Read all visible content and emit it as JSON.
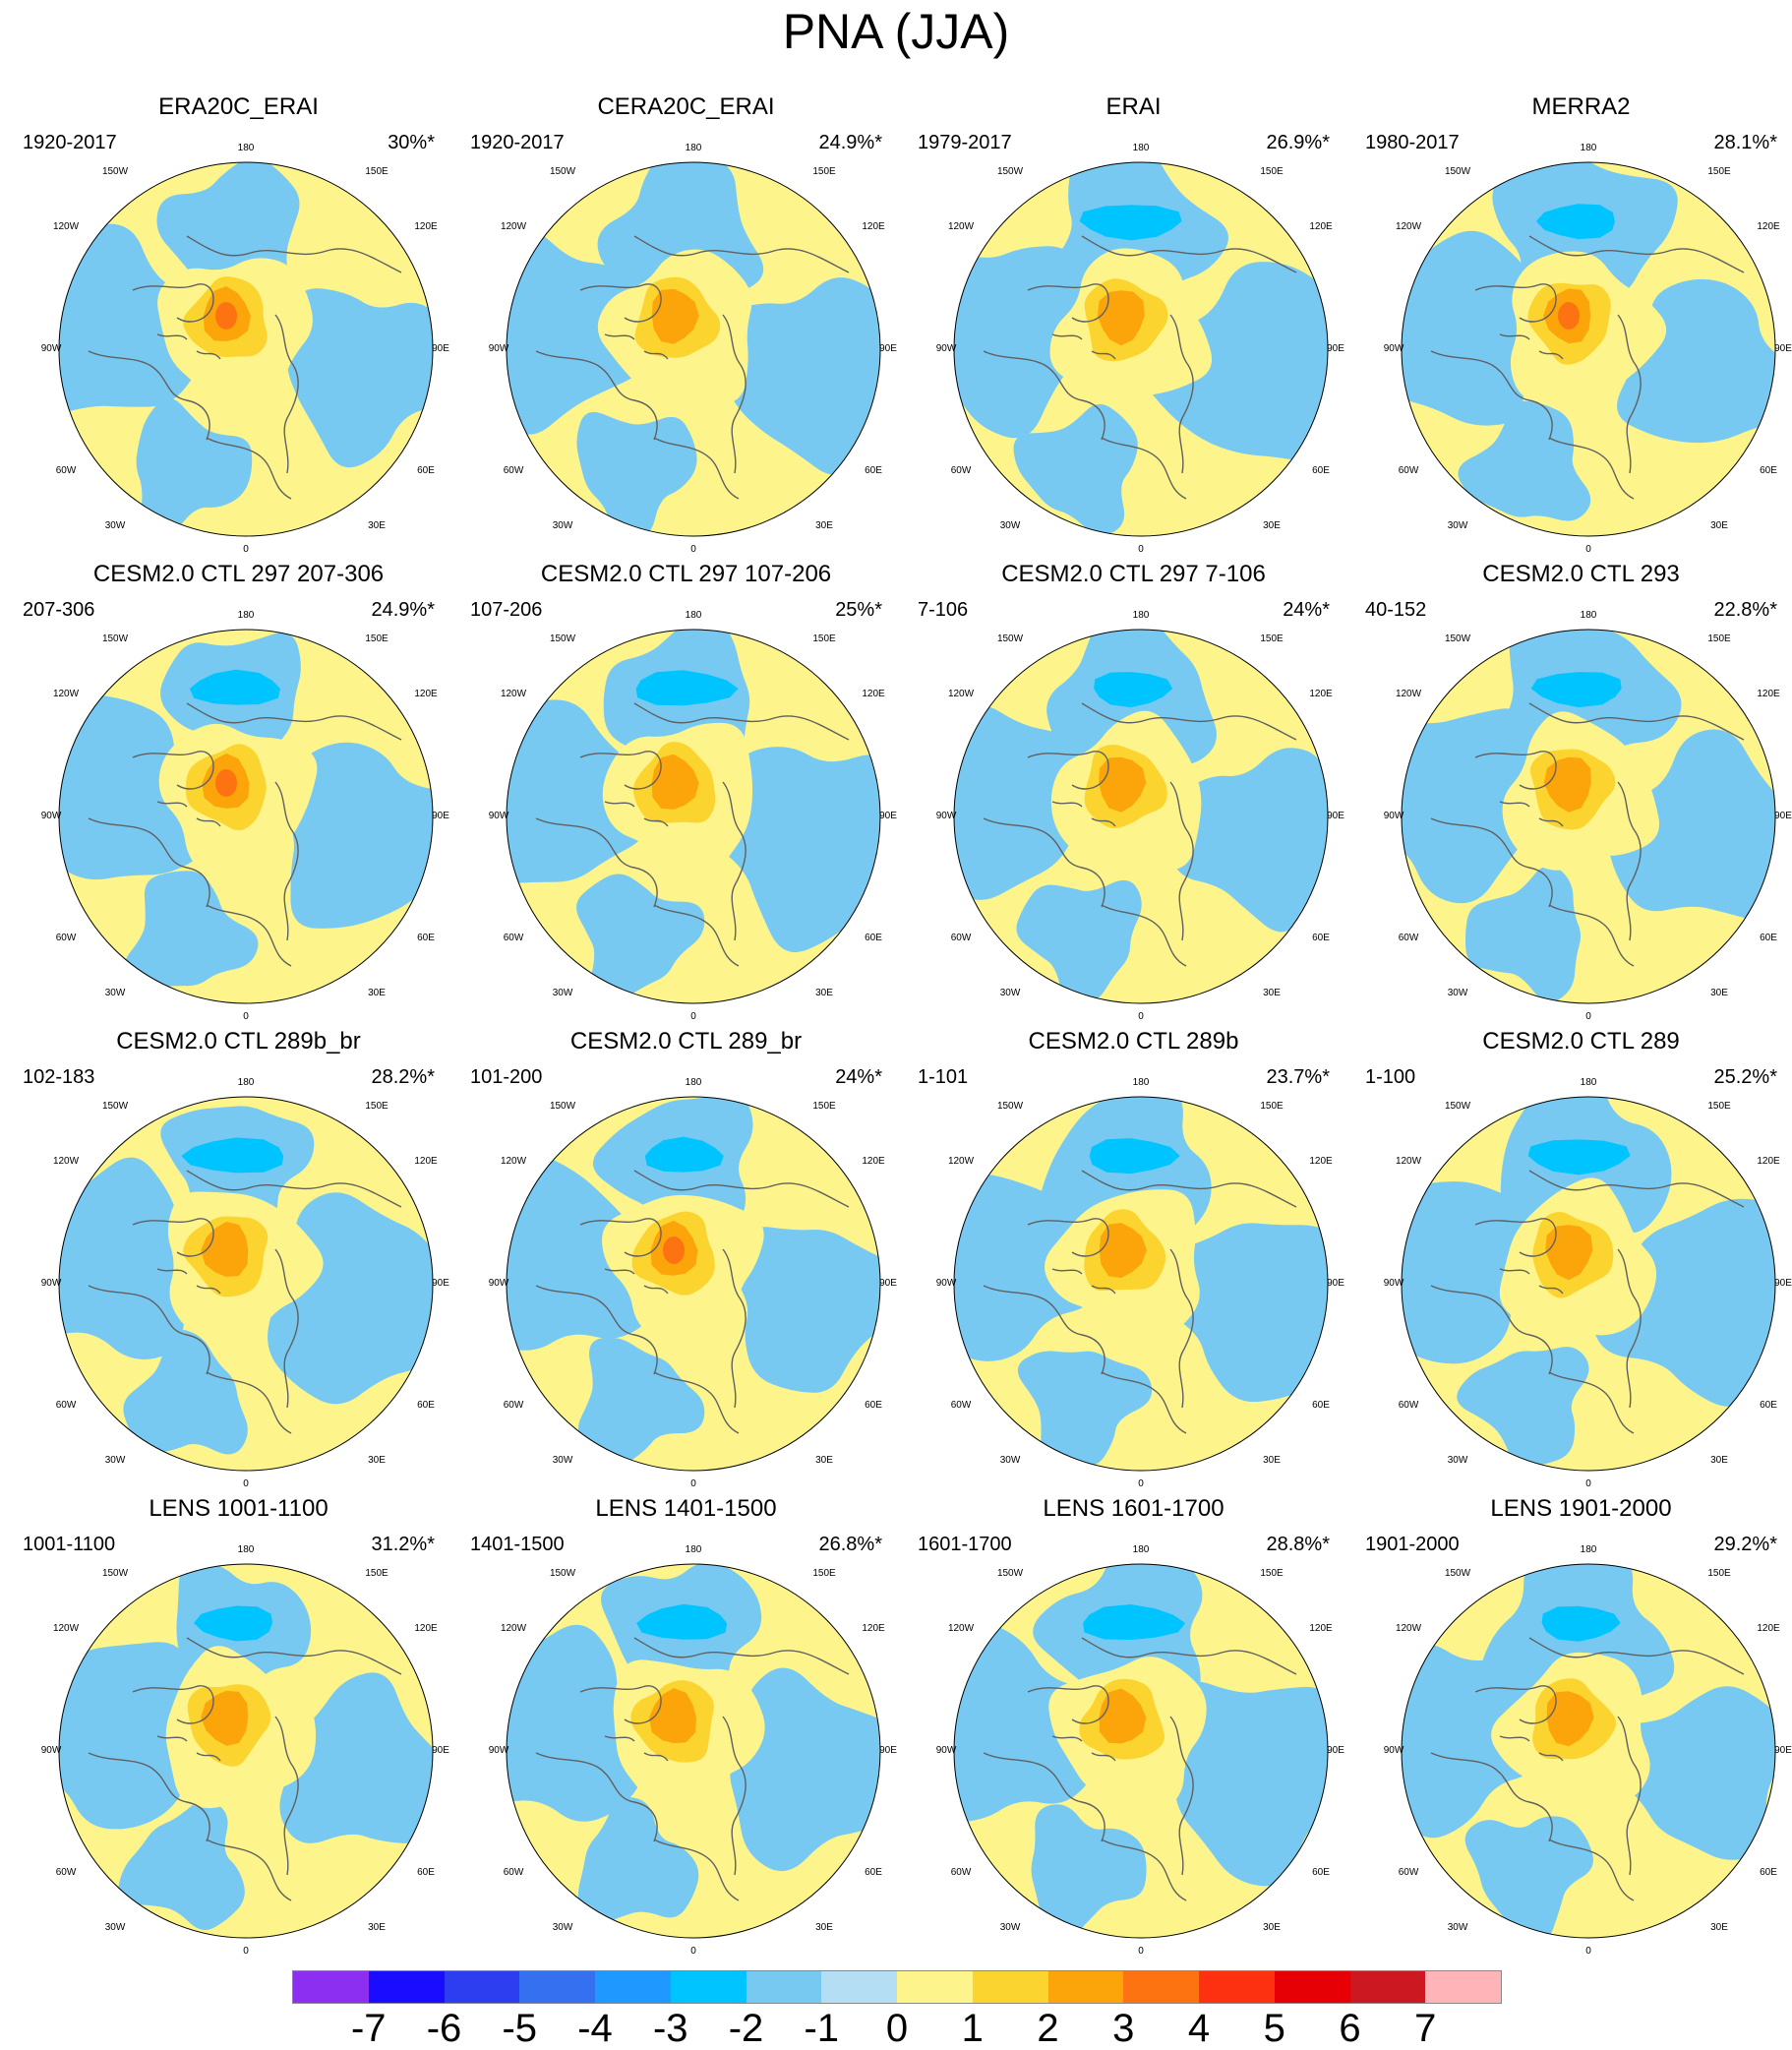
{
  "title": "PNA (JJA)",
  "lon_labels": [
    "180",
    "150E",
    "120E",
    "90E",
    "60E",
    "30E",
    "0",
    "30W",
    "60W",
    "90W",
    "120W",
    "150W"
  ],
  "colorbar": {
    "ticks": [
      "-7",
      "-6",
      "-5",
      "-4",
      "-3",
      "-2",
      "-1",
      "0",
      "1",
      "2",
      "3",
      "4",
      "5",
      "6",
      "7"
    ],
    "colors": [
      "#8c2ff0",
      "#1a0dff",
      "#2d3ef0",
      "#3470f0",
      "#1f98ff",
      "#00c4ff",
      "#78c9f2",
      "#b3def3",
      "#fdf58c",
      "#fcd42f",
      "#fca50a",
      "#fd7311",
      "#fd300f",
      "#e60005",
      "#cc1820",
      "#ffb5b8"
    ]
  },
  "panels": [
    {
      "title": "ERA20C_ERAI",
      "period": "1920-2017",
      "percent": "30%*"
    },
    {
      "title": "CERA20C_ERAI",
      "period": "1920-2017",
      "percent": "24.9%*"
    },
    {
      "title": "ERAI",
      "period": "1979-2017",
      "percent": "26.9%*"
    },
    {
      "title": "MERRA2",
      "period": "1980-2017",
      "percent": "28.1%*"
    },
    {
      "title": "CESM2.0 CTL 297 207-306",
      "period": "207-306",
      "percent": "24.9%*"
    },
    {
      "title": "CESM2.0 CTL 297 107-206",
      "period": "107-206",
      "percent": "25%*"
    },
    {
      "title": "CESM2.0 CTL 297 7-106",
      "period": "7-106",
      "percent": "24%*"
    },
    {
      "title": "CESM2.0 CTL 293",
      "period": "40-152",
      "percent": "22.8%*"
    },
    {
      "title": "CESM2.0 CTL 289b_br",
      "period": "102-183",
      "percent": "28.2%*"
    },
    {
      "title": "CESM2.0 CTL 289_br",
      "period": "101-200",
      "percent": "24%*"
    },
    {
      "title": "CESM2.0 CTL 289b",
      "period": "1-101",
      "percent": "23.7%*"
    },
    {
      "title": "CESM2.0 CTL 289",
      "period": "1-100",
      "percent": "25.2%*"
    },
    {
      "title": "LENS 1001-1100",
      "period": "1001-1100",
      "percent": "31.2%*"
    },
    {
      "title": "LENS 1401-1500",
      "period": "1401-1500",
      "percent": "26.8%*"
    },
    {
      "title": "LENS 1601-1700",
      "period": "1601-1700",
      "percent": "28.8%*"
    },
    {
      "title": "LENS 1901-2000",
      "period": "1901-2000",
      "percent": "29.2%*"
    }
  ]
}
